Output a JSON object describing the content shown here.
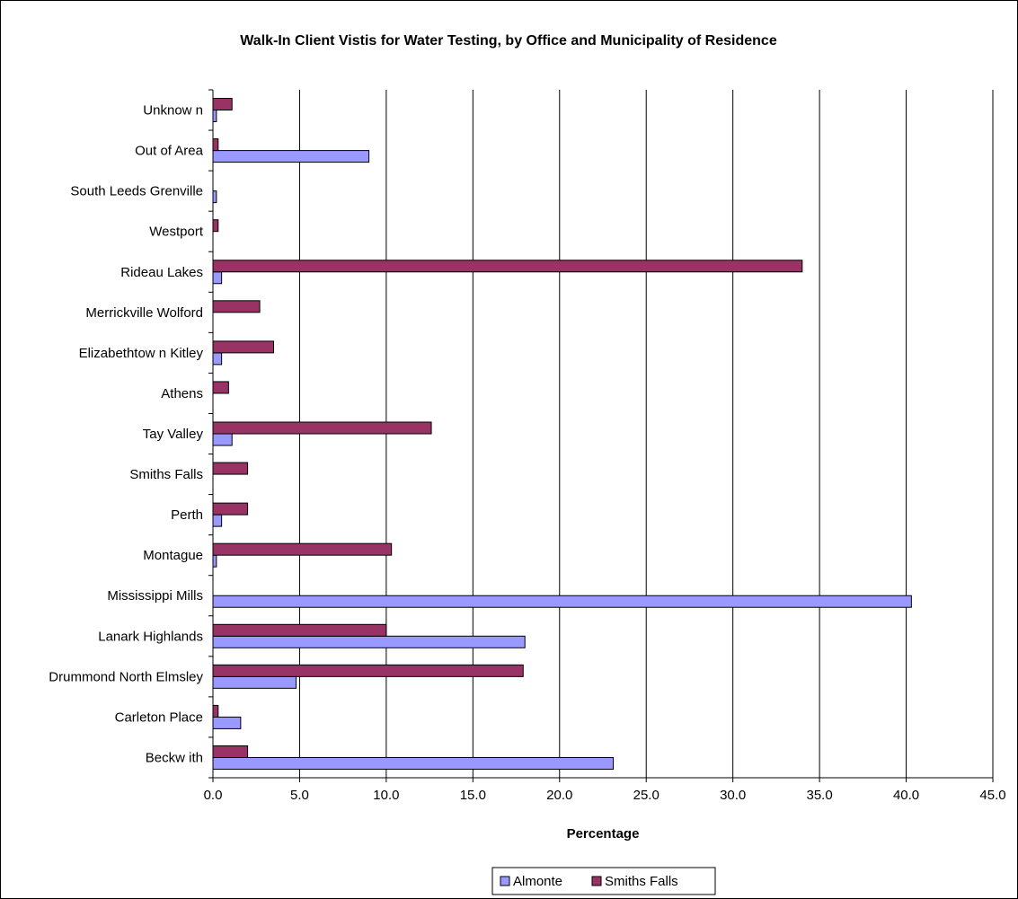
{
  "chart_data": {
    "type": "bar",
    "orientation": "horizontal",
    "title": "Walk-In Client Vistis for Water Testing, by Office and Municipality of Residence",
    "xlabel": "Percentage",
    "ylabel": "",
    "xlim": [
      0,
      45
    ],
    "x_ticks": [
      "0.0",
      "5.0",
      "10.0",
      "15.0",
      "20.0",
      "25.0",
      "30.0",
      "35.0",
      "40.0",
      "45.0"
    ],
    "grid": true,
    "legend_position": "bottom",
    "categories": [
      "Beckw ith",
      "Carleton Place",
      "Drummond North Elmsley",
      "Lanark Highlands",
      "Mississippi Mills",
      "Montague",
      "Perth",
      "Smiths Falls",
      "Tay Valley",
      "Athens",
      "Elizabethtow n Kitley",
      "Merrickville Wolford",
      "Rideau Lakes",
      "Westport",
      "South Leeds Grenville",
      "Out of Area",
      "Unknow n"
    ],
    "series": [
      {
        "name": "Almonte",
        "color": "#9999ff",
        "values": [
          23.1,
          1.6,
          4.8,
          18.0,
          40.3,
          0.2,
          0.5,
          0,
          1.1,
          0,
          0.5,
          0,
          0.5,
          0,
          0.2,
          9.0,
          0.2
        ]
      },
      {
        "name": "Smiths Falls",
        "color": "#993366",
        "values": [
          2.0,
          0.3,
          17.9,
          10.0,
          0,
          10.3,
          2.0,
          2.0,
          12.6,
          0.9,
          3.5,
          2.7,
          34.0,
          0.3,
          0,
          0.3,
          1.1
        ]
      }
    ]
  }
}
